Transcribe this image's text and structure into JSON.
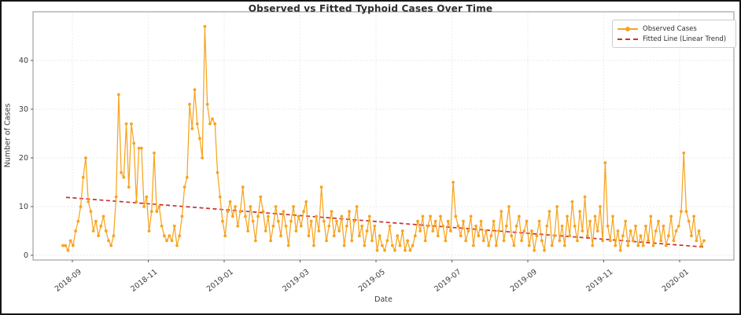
{
  "figure": {
    "title": "Observed vs Fitted Typhoid Cases Over Time",
    "xlabel": "Date",
    "ylabel": "Number of Cases"
  },
  "colors": {
    "observed": "#f7a41f",
    "fitted": "#c83232",
    "grid": "#e3e3e3",
    "spine": "#8f8f8f",
    "tick": "#555555",
    "title_text": "#2d2d2d",
    "axis_text": "#3a3a3a"
  },
  "chart_data": {
    "type": "line",
    "title": "Observed vs Fitted Typhoid Cases Over Time",
    "xlabel": "Date",
    "ylabel": "Number of Cases",
    "x_tick_labels": [
      "2018-09",
      "2018-11",
      "2019-01",
      "2019-03",
      "2019-05",
      "2019-07",
      "2019-09",
      "2019-11",
      "2020-01"
    ],
    "y_ticks": [
      0,
      10,
      20,
      30,
      40
    ],
    "ylim": [
      0,
      48
    ],
    "grid": true,
    "legend_position": "upper right",
    "x_sampling_note": "daily counts, evenly spaced from ~2018-08-24 to ~2020-01-20 (values estimated from pixels, ~2-day resolution)",
    "series": [
      {
        "name": "Observed Cases",
        "type": "line+markers",
        "color": "#f7a41f",
        "values": [
          2,
          2,
          1,
          3,
          2,
          5,
          7,
          10,
          16,
          20,
          11,
          9,
          5,
          7,
          4,
          6,
          8,
          5,
          3,
          2,
          4,
          12,
          33,
          17,
          16,
          27,
          14,
          27,
          23,
          11,
          22,
          22,
          10,
          12,
          5,
          9,
          21,
          9,
          10,
          6,
          4,
          3,
          4,
          3,
          6,
          2,
          4,
          8,
          14,
          16,
          31,
          26,
          34,
          27,
          24,
          20,
          47,
          31,
          27,
          28,
          27,
          17,
          12,
          7,
          4,
          9,
          11,
          8,
          10,
          6,
          9,
          14,
          8,
          5,
          10,
          7,
          3,
          8,
          12,
          9,
          5,
          8,
          3,
          6,
          10,
          7,
          4,
          9,
          6,
          2,
          7,
          10,
          5,
          8,
          6,
          9,
          11,
          4,
          7,
          2,
          8,
          5,
          14,
          7,
          3,
          6,
          9,
          4,
          7,
          5,
          8,
          2,
          6,
          9,
          3,
          7,
          10,
          4,
          6,
          2,
          5,
          8,
          3,
          6,
          1,
          4,
          2,
          1,
          3,
          6,
          2,
          1,
          4,
          2,
          5,
          1,
          3,
          1,
          2,
          4,
          7,
          5,
          8,
          3,
          6,
          8,
          5,
          7,
          4,
          8,
          6,
          3,
          7,
          5,
          15,
          8,
          6,
          4,
          7,
          3,
          5,
          8,
          2,
          6,
          4,
          7,
          3,
          5,
          2,
          4,
          7,
          2,
          5,
          9,
          3,
          6,
          10,
          4,
          2,
          6,
          8,
          3,
          5,
          7,
          2,
          5,
          1,
          4,
          7,
          3,
          1,
          6,
          9,
          2,
          4,
          10,
          3,
          6,
          2,
          8,
          4,
          11,
          6,
          3,
          9,
          5,
          12,
          4,
          7,
          2,
          8,
          5,
          10,
          3,
          19,
          6,
          3,
          8,
          2,
          5,
          1,
          4,
          7,
          2,
          5,
          3,
          6,
          2,
          4,
          2,
          6,
          3,
          8,
          2,
          5,
          7,
          3,
          6,
          2,
          4,
          8,
          3,
          5,
          6,
          9,
          21,
          9,
          7,
          4,
          8,
          3,
          5,
          2,
          3
        ]
      },
      {
        "name": "Fitted Line (Linear Trend)",
        "type": "dashed-line",
        "color": "#c83232",
        "start_value": 11.9,
        "end_value": 1.7
      }
    ]
  }
}
